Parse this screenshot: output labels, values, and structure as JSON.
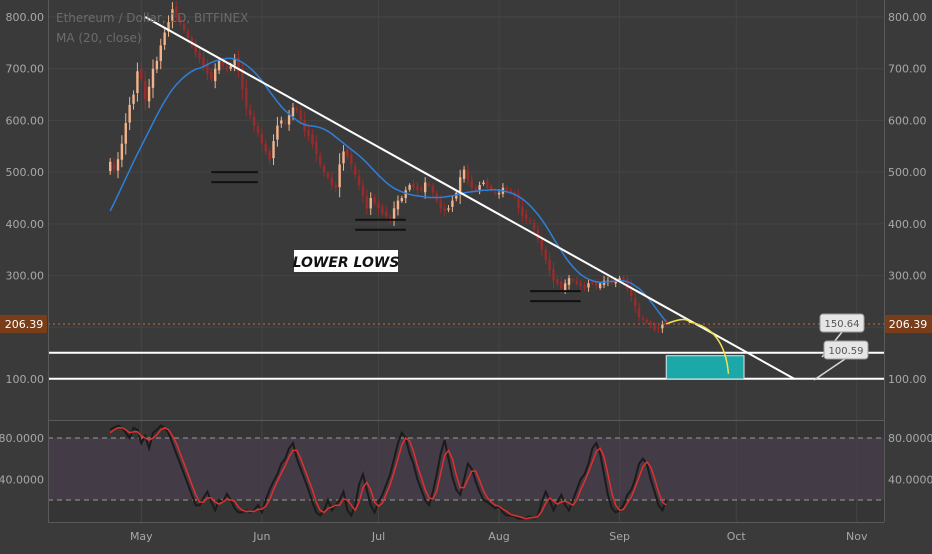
{
  "header": {
    "symbol_line": "Ethereum / Dollar, 1D, BITFINEX",
    "indicator_line": "MA (20, close)"
  },
  "annotation": {
    "lower_lows": "LOWER LOWS"
  },
  "price_tags": {
    "current": "206.39",
    "upper_label": "150.64",
    "lower_label": "100.59"
  },
  "colors": {
    "background": "#3a3a3a",
    "up_candle": "#f2b38a",
    "down_candle": "#9a2b2b",
    "ma_line": "#2f7fd8",
    "trendline": "#ffffff",
    "target_box": "#1aa8a8",
    "projection": "#f3e04a",
    "stoch_k": "#1b1b1b",
    "stoch_d": "#e03030",
    "price_tag": "#7a3d1a"
  },
  "chart_data": [
    {
      "type": "candlestick",
      "title": "Ethereum / Dollar, 1D, BITFINEX",
      "indicator": "MA (20, close)",
      "x": {
        "start": "2018-04-07",
        "end": "2018-11-08",
        "ticks": [
          {
            "date": "2018-05-01",
            "label": "May"
          },
          {
            "date": "2018-06-01",
            "label": "Jun"
          },
          {
            "date": "2018-07-01",
            "label": "Jul"
          },
          {
            "date": "2018-08-01",
            "label": "Aug"
          },
          {
            "date": "2018-09-01",
            "label": "Sep"
          },
          {
            "date": "2018-10-01",
            "label": "Oct"
          },
          {
            "date": "2018-11-01",
            "label": "Nov"
          }
        ]
      },
      "y": {
        "range": [
          100,
          800
        ],
        "ticks": [
          "100.00",
          "200.00",
          "300.00",
          "400.00",
          "500.00",
          "600.00",
          "700.00",
          "800.00"
        ],
        "tick_values": [
          100,
          200,
          300,
          400,
          500,
          600,
          700,
          800
        ]
      },
      "price_close": [
        520,
        505,
        525,
        555,
        595,
        630,
        650,
        695,
        680,
        640,
        665,
        700,
        715,
        745,
        770,
        790,
        815,
        800,
        790,
        775,
        760,
        745,
        730,
        720,
        705,
        690,
        680,
        700,
        715,
        705,
        700,
        705,
        720,
        695,
        660,
        625,
        610,
        590,
        575,
        555,
        540,
        525,
        560,
        590,
        600,
        595,
        610,
        625,
        620,
        600,
        580,
        570,
        555,
        535,
        515,
        500,
        490,
        475,
        470,
        515,
        540,
        530,
        515,
        495,
        475,
        455,
        430,
        450,
        440,
        430,
        420,
        415,
        410,
        430,
        445,
        450,
        465,
        475,
        470,
        465,
        465,
        480,
        475,
        460,
        445,
        430,
        425,
        430,
        445,
        460,
        490,
        505,
        485,
        470,
        465,
        475,
        480,
        470,
        465,
        460,
        460,
        470,
        465,
        460,
        455,
        430,
        415,
        410,
        405,
        390,
        370,
        350,
        330,
        310,
        290,
        285,
        275,
        285,
        295,
        290,
        285,
        280,
        275,
        285,
        285,
        280,
        285,
        290,
        290,
        285,
        290,
        295,
        290,
        275,
        260,
        240,
        220,
        215,
        210,
        205,
        195,
        195,
        205,
        206.39
      ],
      "ma20": [
        425,
        440,
        456,
        472,
        488,
        504,
        520,
        535,
        550,
        565,
        580,
        595,
        610,
        624,
        637,
        649,
        660,
        669,
        677,
        684,
        690,
        695,
        699,
        701,
        704,
        708,
        712,
        715,
        717,
        718,
        720,
        720,
        719,
        716,
        712,
        707,
        701,
        694,
        686,
        677,
        667,
        656,
        646,
        636,
        627,
        619,
        612,
        606,
        600,
        595,
        592,
        590,
        589,
        588,
        586,
        583,
        579,
        574,
        568,
        562,
        556,
        550,
        544,
        538,
        532,
        525,
        518,
        510,
        502,
        494,
        487,
        480,
        474,
        469,
        465,
        462,
        459,
        457,
        455,
        454,
        453,
        452,
        451,
        451,
        451,
        451,
        452,
        453,
        454,
        456,
        458,
        460,
        461,
        462,
        463,
        464,
        465,
        465,
        466,
        466,
        465,
        464,
        462,
        460,
        457,
        453,
        448,
        442,
        435,
        427,
        418,
        408,
        397,
        385,
        372,
        360,
        348,
        336,
        326,
        317,
        309,
        302,
        297,
        293,
        290,
        288,
        287,
        287,
        288,
        289,
        289,
        290,
        290,
        288,
        285,
        280,
        275,
        268,
        260,
        250,
        240,
        230,
        220,
        210
      ],
      "trendline": {
        "from": {
          "date": "2018-05-02",
          "price": 800
        },
        "to": {
          "date": "2018-10-16",
          "price": 100
        }
      },
      "support_lines": [
        150.64,
        100.59
      ],
      "projection": {
        "from": {
          "date": "2018-09-13",
          "price": 206.39
        },
        "peak": {
          "date": "2018-09-19",
          "price": 210
        },
        "to": {
          "date": "2018-09-29",
          "price": 110
        }
      },
      "target_zone": {
        "date_from": "2018-09-13",
        "date_to": "2018-10-03",
        "price_low": 100,
        "price_high": 145
      },
      "lower_low_markers": [
        {
          "date_from": "2018-05-19",
          "date_to": "2018-05-31",
          "price": 500
        },
        {
          "date_from": "2018-06-25",
          "date_to": "2018-07-08",
          "price": 408
        },
        {
          "date_from": "2018-08-09",
          "date_to": "2018-08-22",
          "price": 270
        }
      ]
    },
    {
      "type": "line",
      "title": "",
      "y": {
        "range": [
          0,
          100
        ],
        "ticks": [
          "40.0000",
          "80.0000"
        ],
        "tick_values": [
          40,
          80
        ],
        "band": [
          20,
          80
        ],
        "levels": [
          20,
          80
        ]
      },
      "series": [
        {
          "key": "k",
          "values": [
            88,
            90,
            92,
            90,
            85,
            80,
            90,
            88,
            75,
            82,
            70,
            85,
            88,
            92,
            90,
            85,
            75,
            65,
            55,
            45,
            35,
            25,
            15,
            15,
            22,
            28,
            18,
            10,
            20,
            18,
            26,
            20,
            12,
            8,
            8,
            10,
            8,
            10,
            15,
            8,
            20,
            30,
            38,
            45,
            55,
            60,
            70,
            75,
            60,
            50,
            40,
            30,
            18,
            8,
            5,
            10,
            20,
            10,
            15,
            20,
            28,
            10,
            5,
            15,
            35,
            45,
            30,
            15,
            8,
            18,
            25,
            35,
            45,
            60,
            75,
            85,
            80,
            65,
            55,
            40,
            30,
            20,
            15,
            28,
            45,
            65,
            78,
            60,
            42,
            30,
            25,
            40,
            55,
            50,
            38,
            28,
            20,
            18,
            15,
            12,
            14,
            8,
            5,
            5,
            4,
            2,
            2,
            3,
            4,
            2,
            5,
            18,
            28,
            20,
            10,
            18,
            25,
            15,
            10,
            20,
            30,
            40,
            45,
            55,
            70,
            75,
            65,
            45,
            25,
            12,
            8,
            10,
            15,
            25,
            30,
            40,
            55,
            60,
            55,
            40,
            28,
            15,
            10,
            20
          ]
        },
        {
          "key": "d",
          "values": [
            85,
            88,
            90,
            90,
            88,
            85,
            86,
            86,
            82,
            80,
            78,
            80,
            83,
            88,
            90,
            88,
            82,
            75,
            65,
            55,
            45,
            35,
            25,
            18,
            18,
            22,
            22,
            18,
            16,
            18,
            21,
            20,
            19,
            13,
            10,
            9,
            9,
            9,
            11,
            11,
            14,
            20,
            30,
            38,
            46,
            53,
            62,
            68,
            68,
            60,
            50,
            40,
            30,
            18,
            10,
            8,
            12,
            13,
            15,
            15,
            21,
            20,
            15,
            10,
            18,
            32,
            37,
            30,
            18,
            14,
            17,
            26,
            35,
            47,
            60,
            73,
            80,
            77,
            67,
            53,
            42,
            30,
            22,
            21,
            29,
            46,
            63,
            68,
            60,
            44,
            32,
            32,
            40,
            48,
            48,
            39,
            29,
            22,
            18,
            15,
            14,
            11,
            9,
            6,
            5,
            4,
            3,
            2,
            3,
            3,
            4,
            9,
            17,
            22,
            19,
            16,
            18,
            19,
            17,
            15,
            20,
            30,
            38,
            47,
            57,
            67,
            70,
            62,
            45,
            27,
            15,
            10,
            11,
            17,
            23,
            32,
            42,
            52,
            57,
            52,
            41,
            28,
            18,
            15
          ]
        }
      ]
    }
  ]
}
